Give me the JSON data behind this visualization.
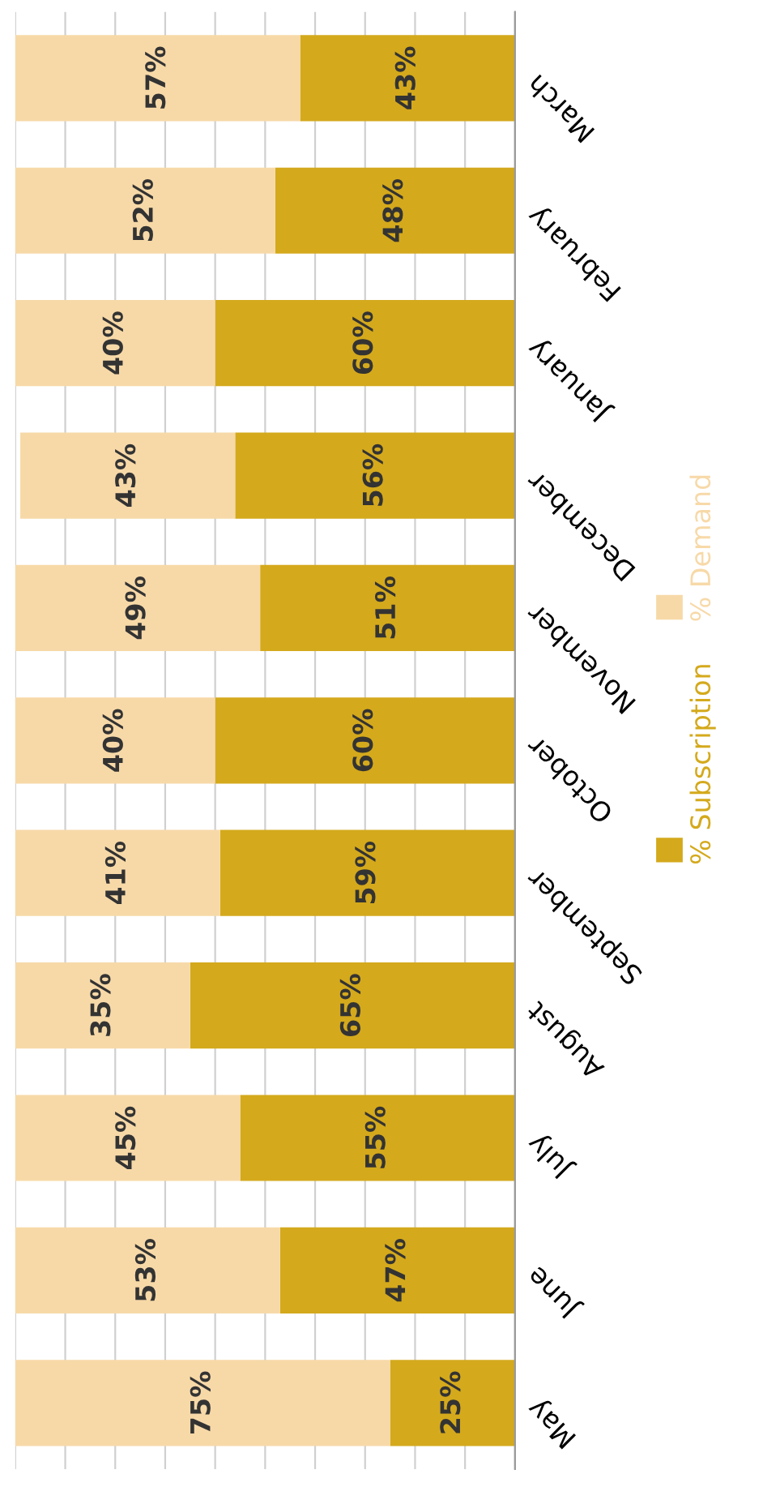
{
  "chart_data": {
    "type": "bar",
    "orientation": "horizontal",
    "stacked": true,
    "categories": [
      "March",
      "February",
      "January",
      "December",
      "November",
      "October",
      "September",
      "August",
      "July",
      "June",
      "May"
    ],
    "series": [
      {
        "name": "% Subscription",
        "color": "#d4a91c",
        "values": [
          43,
          48,
          60,
          56,
          51,
          60,
          59,
          65,
          55,
          47,
          25
        ],
        "value_labels": [
          "43%",
          "48%",
          "60%",
          "56%",
          "51%",
          "60%",
          "59%",
          "65%",
          "55%",
          "47%",
          "25%"
        ]
      },
      {
        "name": "% Demand",
        "color": "#f7d9a8",
        "values": [
          57,
          52,
          40,
          43,
          49,
          40,
          41,
          35,
          45,
          53,
          75
        ],
        "value_labels": [
          "57%",
          "52%",
          "40%",
          "43%",
          "49%",
          "40%",
          "41%",
          "35%",
          "45%",
          "53%",
          "75%"
        ]
      }
    ],
    "xlim": [
      100,
      0
    ],
    "xticks": [
      {
        "value": 0,
        "label": null
      },
      {
        "value": 10,
        "label": null
      },
      {
        "value": 20,
        "label": null
      },
      {
        "value": 30,
        "label": null
      },
      {
        "value": 40,
        "label": null
      },
      {
        "value": 50,
        "label": null
      },
      {
        "value": 60,
        "label": null
      },
      {
        "value": 70,
        "label": null
      },
      {
        "value": 80,
        "label": null
      },
      {
        "value": 90,
        "label": null
      },
      {
        "value": 100,
        "label": null
      }
    ],
    "grid": "x",
    "legend": "right"
  }
}
